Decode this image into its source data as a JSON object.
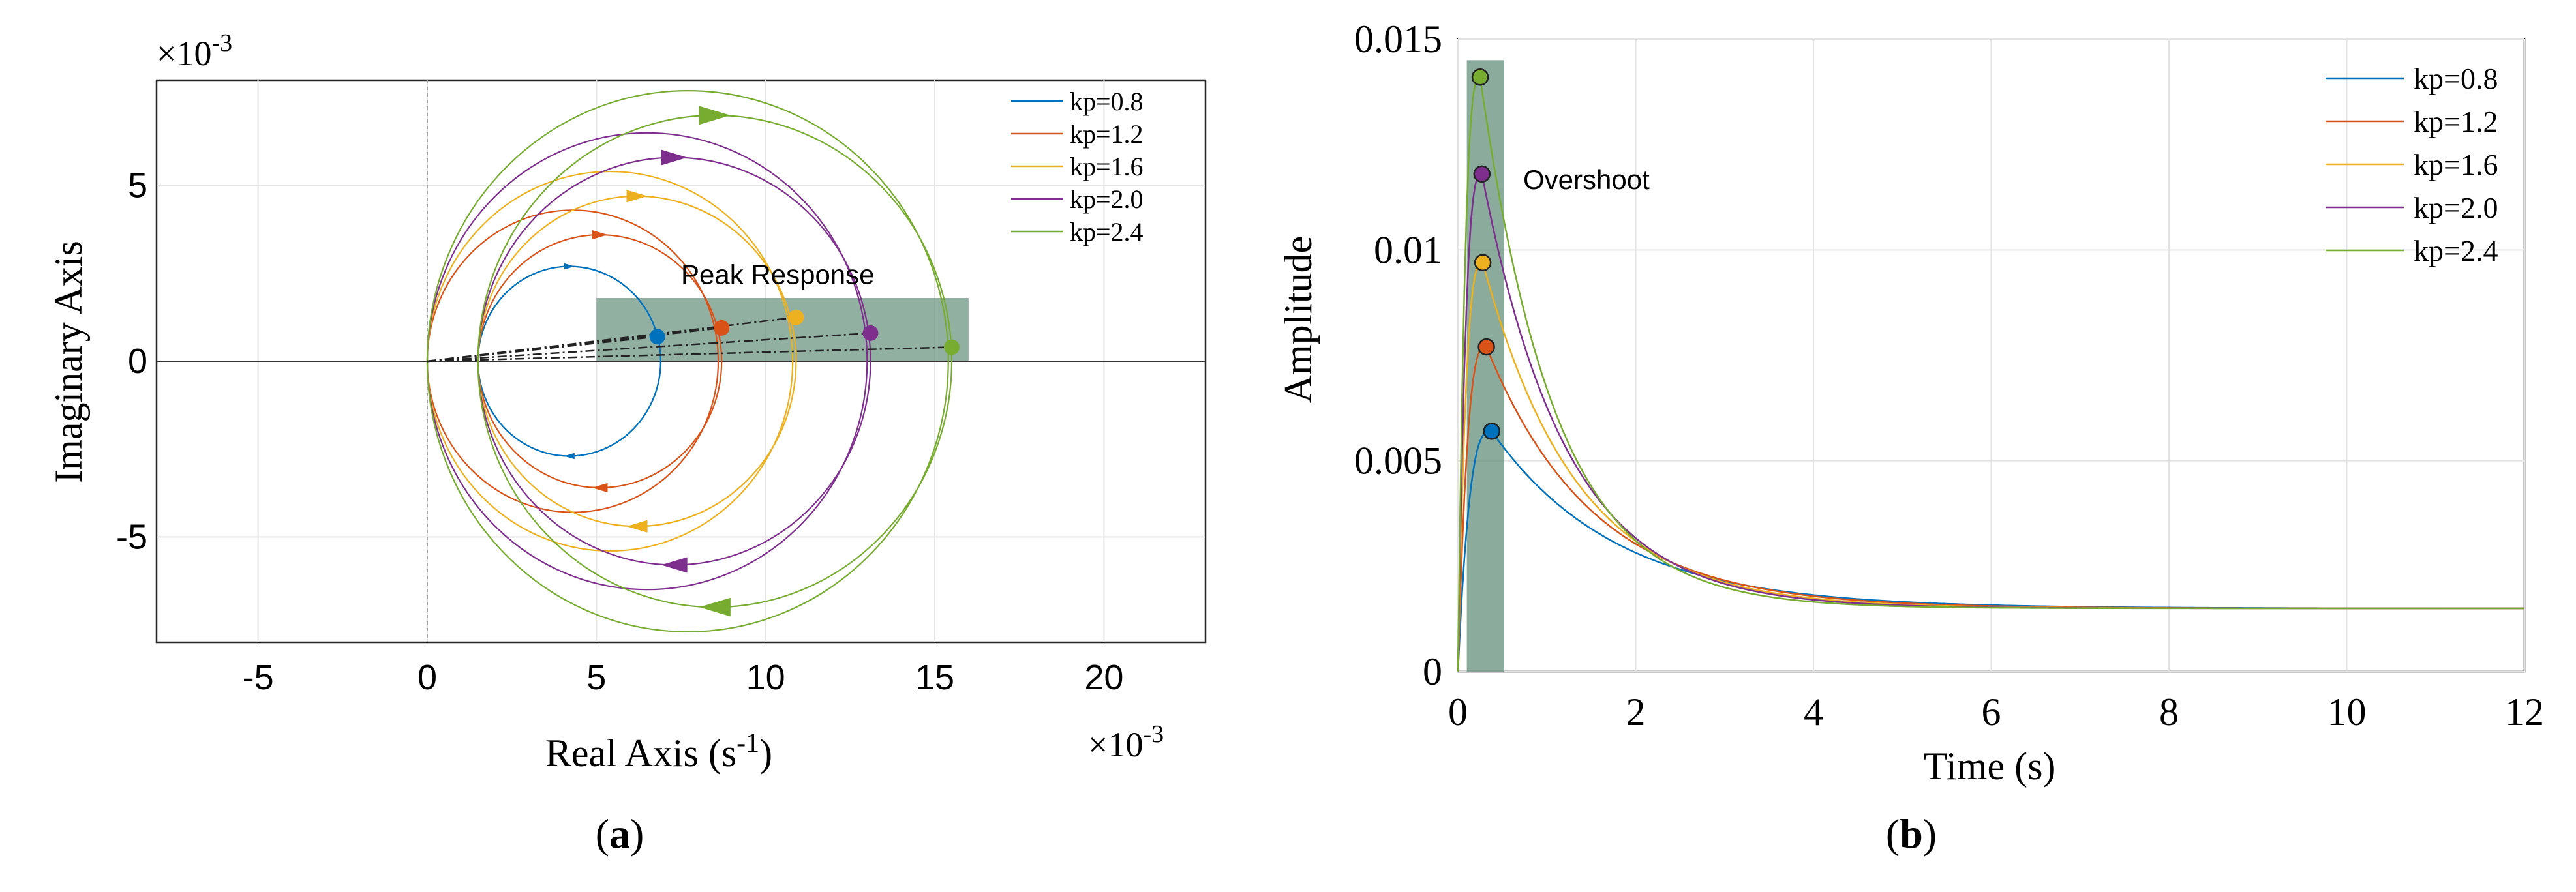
{
  "chart_data": [
    {
      "type": "line",
      "subtitle_label": "a",
      "title": "",
      "xlabel": "Real Axis (s",
      "xlabel_sup": "-1",
      "xlabel_close": ")",
      "ylabel": "Imaginary Axis",
      "x_exponent": {
        "base": "×10",
        "power": "-3"
      },
      "y_exponent": {
        "base": "×10",
        "power": "-3"
      },
      "xlim": [
        -8,
        23
      ],
      "ylim": [
        -8,
        8
      ],
      "xticks": [
        -5,
        0,
        5,
        10,
        15,
        20
      ],
      "xtick_labels": [
        "-5",
        "0",
        "5",
        "10",
        "15",
        "20"
      ],
      "yticks": [
        -5,
        0,
        5
      ],
      "ytick_labels": [
        "-5",
        "0",
        "5"
      ],
      "grid": true,
      "legend_position": "top-right",
      "annotation": "Peak Response",
      "highlight_region": {
        "x": [
          5.0,
          16.0
        ],
        "y": [
          0,
          1.8
        ]
      },
      "series": [
        {
          "name": "kp=0.8",
          "color": "#0072BD",
          "inner_circle": {
            "center": [
              4.2,
              0
            ],
            "radius": 2.7
          },
          "outer_circle": {
            "center": [
              4.2,
              0
            ],
            "radius": 2.7
          },
          "peak_point": [
            6.8,
            0.7
          ]
        },
        {
          "name": "kp=1.2",
          "color": "#D95319",
          "inner_circle": {
            "center": [
              4.3,
              0
            ],
            "radius": 4.3
          },
          "outer_circle": {
            "center": [
              5.1,
              0
            ],
            "radius": 3.6
          },
          "peak_point": [
            8.7,
            0.95
          ]
        },
        {
          "name": "kp=1.6",
          "color": "#EDB120",
          "inner_circle": {
            "center": [
              5.4,
              0
            ],
            "radius": 5.4
          },
          "outer_circle": {
            "center": [
              6.2,
              0
            ],
            "radius": 4.7
          },
          "peak_point": [
            10.9,
            1.25
          ]
        },
        {
          "name": "kp=2.0",
          "color": "#7E2F8E",
          "inner_circle": {
            "center": [
              6.5,
              0
            ],
            "radius": 6.5
          },
          "outer_circle": {
            "center": [
              7.3,
              0
            ],
            "radius": 5.8
          },
          "peak_point": [
            13.1,
            0.8
          ]
        },
        {
          "name": "kp=2.4",
          "color": "#77AC30",
          "inner_circle": {
            "center": [
              7.7,
              0
            ],
            "radius": 7.7
          },
          "outer_circle": {
            "center": [
              8.5,
              0
            ],
            "radius": 7.0
          },
          "peak_point": [
            15.5,
            0.4
          ]
        }
      ]
    },
    {
      "type": "line",
      "subtitle_label": "b",
      "title": "",
      "xlabel": "Time (s)",
      "ylabel": "Amplitude",
      "xlim": [
        0,
        12
      ],
      "ylim": [
        0,
        0.015
      ],
      "xticks": [
        0,
        2,
        4,
        6,
        8,
        10,
        12
      ],
      "xtick_labels": [
        "0",
        "2",
        "4",
        "6",
        "8",
        "10",
        "12"
      ],
      "yticks": [
        0,
        0.005,
        0.01,
        0.015
      ],
      "ytick_labels": [
        "0",
        "0.005",
        "0.01",
        "0.015"
      ],
      "grid": true,
      "legend_position": "top-right",
      "annotation": "Overshoot",
      "highlight_region": {
        "x": [
          0.1,
          0.52
        ],
        "y": [
          0,
          0.0145
        ]
      },
      "final_value": 0.0015,
      "series": [
        {
          "name": "kp=0.8",
          "color": "#0072BD",
          "peak_time": 0.38,
          "peak_value": 0.0057,
          "decay_tau": 1.4
        },
        {
          "name": "kp=1.2",
          "color": "#D95319",
          "peak_time": 0.32,
          "peak_value": 0.0077,
          "decay_tau": 1.2
        },
        {
          "name": "kp=1.6",
          "color": "#EDB120",
          "peak_time": 0.28,
          "peak_value": 0.0097,
          "decay_tau": 1.05
        },
        {
          "name": "kp=2.0",
          "color": "#7E2F8E",
          "peak_time": 0.27,
          "peak_value": 0.0118,
          "decay_tau": 0.95
        },
        {
          "name": "kp=2.4",
          "color": "#77AC30",
          "peak_time": 0.25,
          "peak_value": 0.0141,
          "decay_tau": 0.85
        }
      ]
    }
  ]
}
